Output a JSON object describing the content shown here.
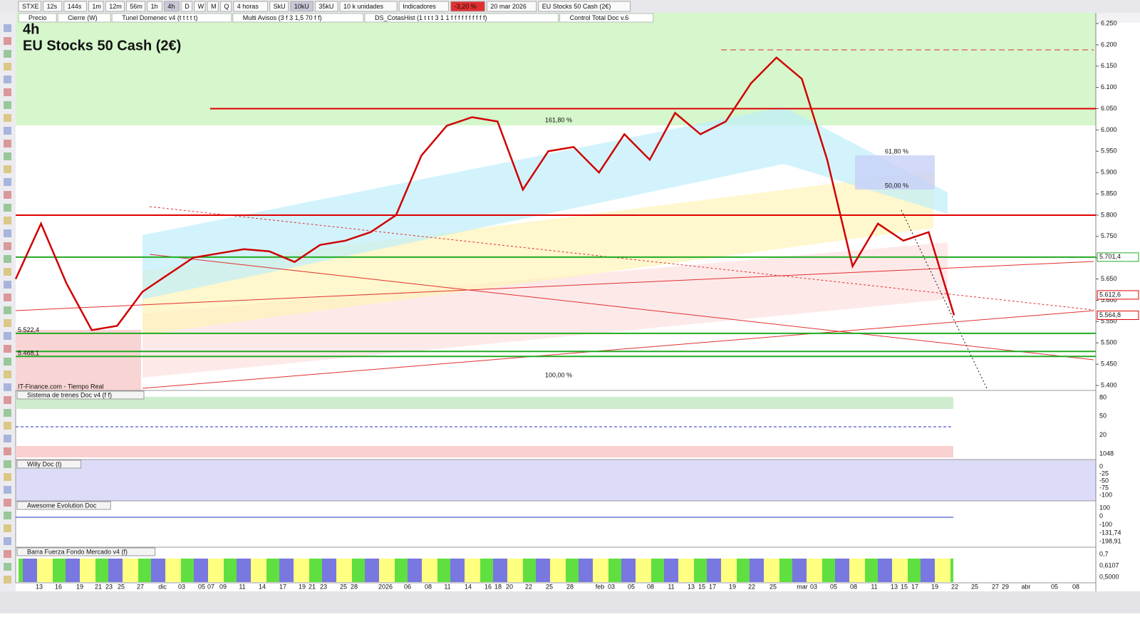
{
  "toolbar": {
    "items": [
      "STXE",
      "12s",
      "144s",
      "1m",
      "12m",
      "56m",
      "1h",
      "4h",
      "D",
      "W",
      "M",
      "Q",
      "4 horas",
      "SkU",
      "10kU",
      "35kU",
      "10 k unidades",
      "Indicadores",
      "-3,20 %",
      "20 mar 2026",
      "EU Stocks 50 Cash (2€)"
    ]
  },
  "indicator_bar": {
    "items": [
      "Precio",
      "Cierre (W)",
      "Tunel Domenec v4 (t t t t t)",
      "Multi Avisos (3 f 3 1,5 70 f f)",
      "DS_CotasHist (1 t t t 3 1 1 f f f f f f f f f f)",
      "Control Total Doc v.6"
    ]
  },
  "chart": {
    "interval": "4h",
    "title": "EU Stocks 50 Cash (2€)",
    "source": "IT-Finance.com - Tiempo Real",
    "ylim": [
      5400,
      6250
    ],
    "yticks": [
      {
        "value": 5400,
        "label": "5.400"
      },
      {
        "value": 5450,
        "label": "5.450"
      },
      {
        "value": 5500,
        "label": "5.500"
      },
      {
        "value": 5550,
        "label": "5.550"
      },
      {
        "value": 5600,
        "label": "5.600"
      },
      {
        "value": 5650,
        "label": "5.650"
      },
      {
        "value": 5700,
        "label": "5.700"
      },
      {
        "value": 5750,
        "label": "5.750"
      },
      {
        "value": 5800,
        "label": "5.800"
      },
      {
        "value": 5850,
        "label": "5.850"
      },
      {
        "value": 5900,
        "label": "5.900"
      },
      {
        "value": 5950,
        "label": "5.950"
      },
      {
        "value": 6000,
        "label": "6.000"
      },
      {
        "value": 6050,
        "label": "6.050"
      },
      {
        "value": 6100,
        "label": "6.100"
      },
      {
        "value": 6150,
        "label": "6.150"
      },
      {
        "value": 6200,
        "label": "6.200"
      },
      {
        "value": 6250,
        "label": "6.250"
      }
    ],
    "close": [
      5650,
      5780,
      5640,
      5530,
      5540,
      5620,
      5660,
      5700,
      5710,
      5720,
      5715,
      5690,
      5730,
      5740,
      5760,
      5800,
      5940,
      6010,
      6030,
      6020,
      5860,
      5950,
      5960,
      5900,
      5990,
      5930,
      6040,
      5990,
      6020,
      6110,
      6170,
      6120,
      5930,
      5680,
      5780,
      5740,
      5760,
      5565
    ],
    "line_color": "#d00000",
    "levels": [
      {
        "value": 6050,
        "color": "#e00000"
      },
      {
        "value": 5800,
        "color": "#e00000"
      },
      {
        "value": 5701.4,
        "color": "#22aa22"
      },
      {
        "value": 5522.4,
        "color": "#22aa22",
        "label": "5.522,4"
      },
      {
        "value": 5480,
        "color": "#22aa22"
      },
      {
        "value": 5468.1,
        "color": "#22aa22",
        "label": "5.468,1"
      }
    ],
    "price_labels": [
      {
        "value": 5701.4,
        "label": "5.701,4",
        "color": "#22aa22"
      },
      {
        "value": 5612.6,
        "label": "5.612,6",
        "color": "#e00000"
      },
      {
        "value": 5564.8,
        "label": "5.564,8",
        "color": "#e00000"
      }
    ],
    "annotations": [
      "161,80 %",
      "61,80 %",
      "50,00 %",
      "100,00 %"
    ]
  },
  "panels": [
    {
      "title": "Sistema de trenes Doc v4 (f f)",
      "axis_labels": [
        "80",
        "50",
        "20",
        "1048"
      ]
    },
    {
      "title": "Willy Doc (t)",
      "axis_labels": [
        "0",
        "-25",
        "-50",
        "-75",
        "-100"
      ]
    },
    {
      "title": "Awesome Evolution Doc",
      "axis_labels": [
        "100",
        "0",
        "-100",
        "-131,74",
        "-198,91"
      ]
    },
    {
      "title": "Barra Fuerza Fondo Mercado v4 (f)",
      "axis_labels": [
        "0,7",
        "0,6107",
        "0,5000"
      ]
    }
  ],
  "date_axis": [
    "13",
    "16",
    "19",
    "21",
    "23",
    "25",
    "27",
    "dic",
    "03",
    "05",
    "07",
    "09",
    "11",
    "14",
    "17",
    "19",
    "21",
    "23",
    "25",
    "28",
    "2026",
    "06",
    "08",
    "11",
    "14",
    "16",
    "18",
    "20",
    "22",
    "25",
    "28",
    "feb",
    "03",
    "05",
    "08",
    "11",
    "13",
    "15",
    "17",
    "19",
    "22",
    "25",
    "mar",
    "03",
    "05",
    "08",
    "11",
    "13",
    "15",
    "17",
    "19",
    "22",
    "25",
    "27",
    "29",
    "abr",
    "05",
    "08"
  ]
}
